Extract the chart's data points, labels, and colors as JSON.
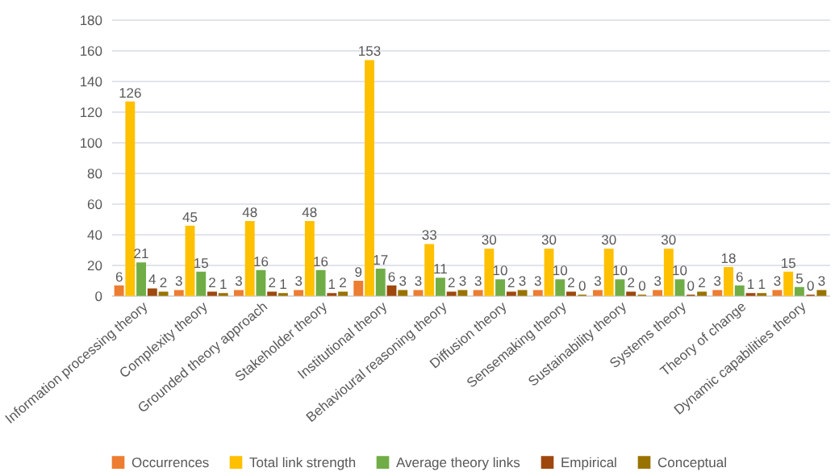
{
  "chart_data": {
    "type": "bar",
    "categories": [
      "Information processing theory",
      "Complexity theory",
      "Grounded theory approach",
      "Stakeholder theory",
      "Institutional theory",
      "Behavioural reasoning theory",
      "Diffusion theory",
      "Sensemaking theory",
      "Sustainability theory",
      "Systems theory",
      "Theory of change",
      "Dynamic capabilities theory"
    ],
    "series": [
      {
        "name": "Occurrences",
        "color": "#ed7d31",
        "values": [
          6,
          3,
          3,
          3,
          9,
          3,
          3,
          3,
          3,
          3,
          3,
          3
        ]
      },
      {
        "name": "Total link strength",
        "color": "#ffc000",
        "values": [
          126,
          45,
          48,
          48,
          153,
          33,
          30,
          30,
          30,
          30,
          18,
          15
        ]
      },
      {
        "name": "Average theory links",
        "color": "#70ad47",
        "values": [
          21,
          15,
          16,
          16,
          17,
          11,
          10,
          10,
          10,
          10,
          6,
          5
        ]
      },
      {
        "name": "Empirical",
        "color": "#9e480e",
        "values": [
          4,
          2,
          2,
          1,
          6,
          2,
          2,
          2,
          2,
          0,
          1,
          0
        ]
      },
      {
        "name": "Conceptual",
        "color": "#997300",
        "values": [
          2,
          1,
          1,
          2,
          3,
          3,
          3,
          0,
          0,
          2,
          1,
          3
        ]
      }
    ],
    "ylim": [
      0,
      180
    ],
    "yticks": [
      0,
      20,
      40,
      60,
      80,
      100,
      120,
      140,
      160,
      180
    ],
    "grid": "y",
    "legend": "bottom",
    "data_labels": true
  }
}
